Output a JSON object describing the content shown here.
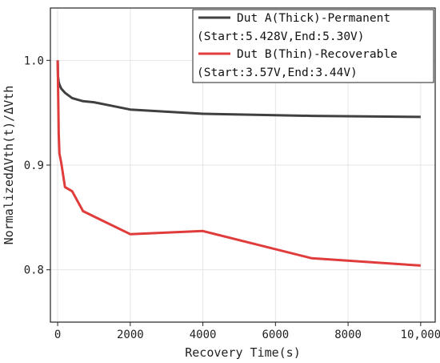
{
  "chart_data": {
    "type": "line",
    "xlabel": "Recovery Time(s)",
    "ylabel": "NormalizedΔVth(t)/ΔVth",
    "xlim": [
      -200,
      10400
    ],
    "ylim": [
      0.75,
      1.05
    ],
    "x_ticks": [
      0,
      2000,
      4000,
      6000,
      8000,
      10000
    ],
    "x_tick_labels": [
      "0",
      "2000",
      "4000",
      "6000",
      "8000",
      "10,000"
    ],
    "y_ticks": [
      0.8,
      0.9,
      1.0
    ],
    "y_tick_labels": [
      "0.8",
      "0.9",
      "1.0"
    ],
    "grid": true,
    "legend_position": "top-right",
    "series": [
      {
        "name": "Dut A(Thick)-Permanent",
        "subtitle": "(Start:5.428V,End:5.30V)",
        "color": "#404040",
        "x": [
          0,
          10,
          30,
          60,
          100,
          200,
          400,
          700,
          1000,
          2000,
          4000,
          7000,
          10000
        ],
        "y": [
          1.0,
          0.985,
          0.979,
          0.976,
          0.973,
          0.969,
          0.964,
          0.961,
          0.96,
          0.953,
          0.949,
          0.947,
          0.946
        ]
      },
      {
        "name": "Dut B(Thin)-Recoverable",
        "subtitle": "(Start:3.57V,End:3.44V)",
        "color": "#e03c3c",
        "x": [
          0,
          30,
          50,
          100,
          200,
          400,
          700,
          2000,
          4000,
          7000,
          10000
        ],
        "y": [
          1.0,
          0.93,
          0.911,
          0.902,
          0.879,
          0.875,
          0.856,
          0.834,
          0.837,
          0.811,
          0.804
        ]
      }
    ]
  }
}
